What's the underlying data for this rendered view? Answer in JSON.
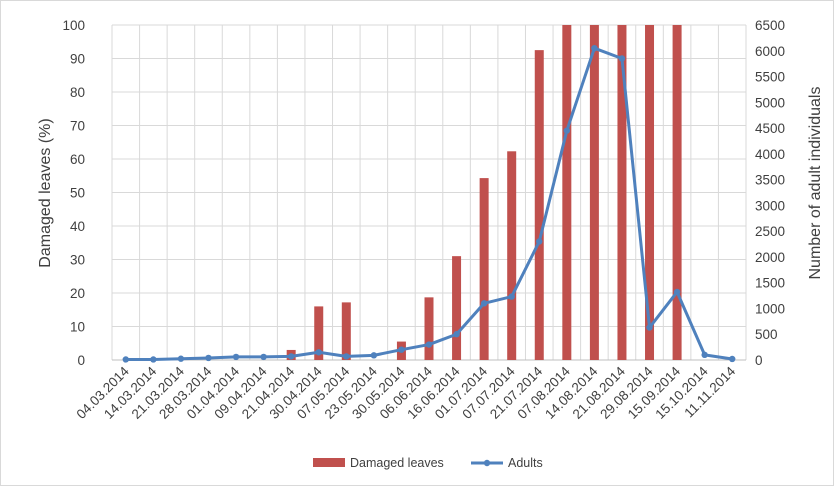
{
  "chart_data": {
    "type": "bar-line-combo",
    "categories": [
      "04.03.2014",
      "14.03.2014",
      "21.03.2014",
      "28.03.2014",
      "01.04.2014",
      "09.04.2014",
      "21.04.2014",
      "30.04.2014",
      "07.05.2014",
      "23.05.2014",
      "30.05.2014",
      "06.06.2014",
      "16.06.2014",
      "01.07.2014",
      "07.07.2014",
      "21.07.2014",
      "07.08.2014",
      "14.08.2014",
      "21.08.2014",
      "29.08.2014",
      "15.09.2014",
      "15.10.2014",
      "11.11.2014"
    ],
    "series": [
      {
        "name": "Damaged leaves",
        "type": "bar",
        "axis": "left",
        "color": "#c0504d",
        "values": [
          0,
          0,
          0,
          0,
          0,
          0,
          3,
          16,
          17.2,
          0,
          5.5,
          18.7,
          31,
          54.3,
          62.3,
          92.5,
          100,
          100,
          100,
          100,
          100,
          0,
          0
        ]
      },
      {
        "name": "Adults",
        "type": "line",
        "axis": "right",
        "color": "#4f81bd",
        "values": [
          10,
          10,
          25,
          40,
          60,
          60,
          70,
          150,
          70,
          90,
          200,
          300,
          500,
          1100,
          1230,
          2300,
          4450,
          6050,
          5850,
          630,
          1320,
          100,
          20
        ]
      }
    ],
    "ylabel": "Damaged leaves  (%)",
    "ylim": [
      0,
      100
    ],
    "yticks": [
      0,
      10,
      20,
      30,
      40,
      50,
      60,
      70,
      80,
      90,
      100
    ],
    "y2label": "Number of adult individuals",
    "y2lim": [
      0,
      6500
    ],
    "y2ticks": [
      0,
      500,
      1000,
      1500,
      2000,
      2500,
      3000,
      3500,
      4000,
      4500,
      5000,
      5500,
      6000,
      6500
    ],
    "grid": true,
    "legend": "bottom"
  }
}
